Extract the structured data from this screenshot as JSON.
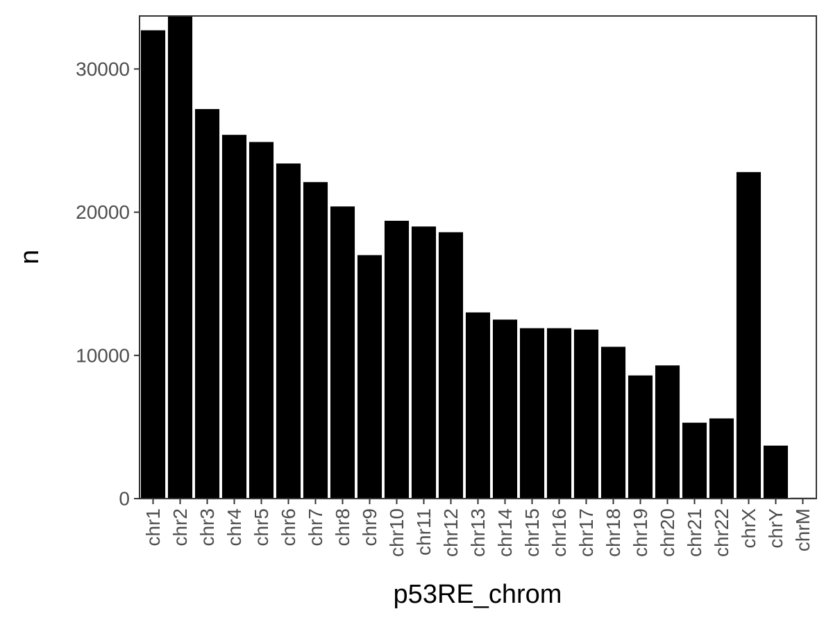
{
  "chart_data": {
    "type": "bar",
    "xlabel": "p53RE_chrom",
    "ylabel": "n",
    "categories": [
      "chr1",
      "chr2",
      "chr3",
      "chr4",
      "chr5",
      "chr6",
      "chr7",
      "chr8",
      "chr9",
      "chr10",
      "chr11",
      "chr12",
      "chr13",
      "chr14",
      "chr15",
      "chr16",
      "chr17",
      "chr18",
      "chr19",
      "chr20",
      "chr21",
      "chr22",
      "chrX",
      "chrY",
      "chrM"
    ],
    "values": [
      32700,
      33900,
      27200,
      25400,
      24900,
      23400,
      22100,
      20400,
      17000,
      19400,
      19000,
      18600,
      13000,
      12500,
      11900,
      11900,
      11800,
      10600,
      8600,
      9300,
      5300,
      5600,
      22800,
      3700,
      60
    ],
    "ylim": [
      0,
      33700
    ],
    "yticks": [
      0,
      10000,
      20000,
      30000
    ],
    "grid": false,
    "legend": "none",
    "colors": {
      "bar": "#000000",
      "axis": "#333333",
      "panel_border": "#333333"
    }
  }
}
